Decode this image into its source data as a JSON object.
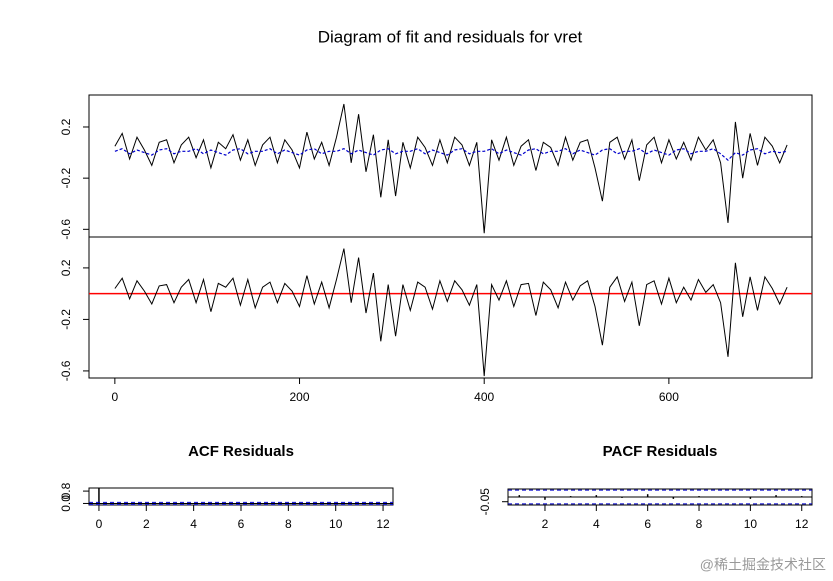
{
  "chart_data": [
    {
      "type": "line",
      "title": "Diagram of fit and residuals for vret",
      "x": [
        0,
        8,
        16,
        24,
        32,
        40,
        48,
        56,
        64,
        72,
        80,
        88,
        96,
        104,
        112,
        120,
        128,
        136,
        144,
        152,
        160,
        168,
        176,
        184,
        192,
        200,
        208,
        216,
        224,
        232,
        240,
        248,
        256,
        264,
        272,
        280,
        288,
        296,
        304,
        312,
        320,
        328,
        336,
        344,
        352,
        360,
        368,
        376,
        384,
        392,
        400,
        408,
        416,
        424,
        432,
        440,
        448,
        456,
        464,
        472,
        480,
        488,
        496,
        504,
        512,
        520,
        528,
        536,
        544,
        552,
        560,
        568,
        576,
        584,
        592,
        600,
        608,
        616,
        624,
        632,
        640,
        648,
        656,
        664,
        672,
        680,
        688,
        696,
        704,
        712,
        720,
        728
      ],
      "series": [
        {
          "color": "#000000",
          "values": [
            0.05,
            0.15,
            -0.05,
            0.12,
            0.02,
            -0.1,
            0.08,
            0.1,
            -0.08,
            0.06,
            0.12,
            -0.04,
            0.1,
            -0.12,
            0.08,
            0.03,
            0.14,
            -0.06,
            0.1,
            -0.1,
            0.06,
            0.12,
            -0.08,
            0.1,
            0.02,
            -0.12,
            0.16,
            -0.05,
            0.08,
            -0.1,
            0.12,
            0.38,
            -0.08,
            0.3,
            -0.15,
            0.14,
            -0.35,
            0.1,
            -0.34,
            0.08,
            -0.12,
            0.12,
            0.04,
            -0.1,
            0.1,
            -0.08,
            0.12,
            0.06,
            -0.1,
            0.08,
            -0.63,
            0.1,
            -0.06,
            0.12,
            -0.1,
            0.05,
            0.1,
            -0.14,
            0.08,
            0.04,
            -0.1,
            0.12,
            -0.06,
            0.08,
            0.1,
            -0.12,
            -0.38,
            0.08,
            0.12,
            -0.05,
            0.1,
            -0.22,
            0.06,
            0.12,
            -0.08,
            0.1,
            -0.05,
            0.08,
            -0.06,
            0.12,
            0.02,
            0.1,
            -0.08,
            -0.55,
            0.24,
            -0.2,
            0.15,
            -0.1,
            0.12,
            0.05,
            -0.08,
            0.06
          ]
        },
        {
          "color": "#0000cc",
          "dashed": true,
          "values": [
            0.01,
            0.03,
            -0.01,
            0.02,
            0.0,
            -0.02,
            0.02,
            0.03,
            -0.01,
            0.01,
            0.01,
            0.03,
            -0.01,
            0.02,
            0.0,
            -0.02,
            0.02,
            0.03,
            -0.01,
            0.01,
            0.01,
            0.03,
            -0.01,
            0.02,
            0.0,
            -0.02,
            0.02,
            0.03,
            -0.01,
            0.01,
            0.01,
            0.03,
            -0.01,
            0.02,
            0.0,
            -0.02,
            0.02,
            0.03,
            -0.01,
            0.01,
            0.01,
            0.03,
            -0.01,
            0.02,
            0.0,
            -0.02,
            0.02,
            0.03,
            -0.01,
            0.01,
            0.01,
            0.03,
            -0.01,
            0.02,
            0.0,
            -0.02,
            0.02,
            0.03,
            -0.01,
            0.01,
            0.01,
            0.03,
            -0.01,
            0.02,
            0.0,
            -0.02,
            0.02,
            0.03,
            -0.01,
            0.01,
            0.01,
            0.03,
            -0.01,
            0.02,
            0.0,
            -0.02,
            0.02,
            0.03,
            -0.01,
            0.01,
            0.01,
            0.03,
            -0.01,
            -0.06,
            0.0,
            -0.02,
            0.02,
            0.03,
            -0.01,
            0.01,
            0.0,
            0.01
          ]
        }
      ],
      "xlim": [
        -28,
        755
      ],
      "ylim": [
        -0.66,
        0.45
      ],
      "yticks": [
        0.2,
        -0.2,
        -0.6
      ]
    },
    {
      "type": "line",
      "x": [
        0,
        8,
        16,
        24,
        32,
        40,
        48,
        56,
        64,
        72,
        80,
        88,
        96,
        104,
        112,
        120,
        128,
        136,
        144,
        152,
        160,
        168,
        176,
        184,
        192,
        200,
        208,
        216,
        224,
        232,
        240,
        248,
        256,
        264,
        272,
        280,
        288,
        296,
        304,
        312,
        320,
        328,
        336,
        344,
        352,
        360,
        368,
        376,
        384,
        392,
        400,
        408,
        416,
        424,
        432,
        440,
        448,
        456,
        464,
        472,
        480,
        488,
        496,
        504,
        512,
        520,
        528,
        536,
        544,
        552,
        560,
        568,
        576,
        584,
        592,
        600,
        608,
        616,
        624,
        632,
        640,
        648,
        656,
        664,
        672,
        680,
        688,
        696,
        704,
        712,
        720,
        728
      ],
      "series": [
        {
          "color": "#000000",
          "values": [
            0.04,
            0.12,
            -0.04,
            0.1,
            0.02,
            -0.08,
            0.06,
            0.07,
            -0.07,
            0.05,
            0.11,
            -0.07,
            0.11,
            -0.14,
            0.08,
            0.05,
            0.12,
            -0.09,
            0.11,
            -0.11,
            0.05,
            0.09,
            -0.07,
            0.08,
            0.02,
            -0.1,
            0.14,
            -0.08,
            0.09,
            -0.11,
            0.11,
            0.35,
            -0.07,
            0.28,
            -0.15,
            0.16,
            -0.37,
            0.07,
            -0.33,
            0.07,
            -0.13,
            0.09,
            0.05,
            -0.12,
            0.1,
            -0.06,
            0.1,
            0.03,
            -0.09,
            0.07,
            -0.64,
            0.07,
            -0.05,
            0.1,
            -0.1,
            0.07,
            0.08,
            -0.17,
            0.09,
            0.03,
            -0.11,
            0.09,
            -0.05,
            0.06,
            0.1,
            -0.1,
            -0.4,
            0.05,
            0.13,
            -0.06,
            0.09,
            -0.25,
            0.07,
            0.1,
            -0.08,
            0.12,
            -0.07,
            0.05,
            -0.05,
            0.11,
            0.01,
            0.07,
            -0.07,
            -0.49,
            0.24,
            -0.18,
            0.13,
            -0.13,
            0.13,
            0.04,
            -0.08,
            0.05
          ]
        }
      ],
      "hline": 0,
      "hline_color": "#ff0000",
      "xlim": [
        -28,
        755
      ],
      "ylim": [
        -0.655,
        0.44
      ],
      "xticks": [
        0,
        200,
        400,
        600
      ],
      "yticks": [
        0.2,
        -0.2,
        -0.6
      ]
    },
    {
      "type": "bar",
      "title": "ACF Residuals",
      "x": [
        0,
        1,
        2,
        3,
        4,
        5,
        6,
        7,
        8,
        9,
        10,
        11,
        12
      ],
      "values": [
        1,
        0.02,
        -0.03,
        0.01,
        0.02,
        -0.01,
        0.03,
        -0.02,
        0.01,
        0.0,
        -0.02,
        0.02,
        0.01
      ],
      "ci": 0.073,
      "ci_color": "#0000cc",
      "xlim": [
        -0.42,
        12.42
      ],
      "ylim": [
        -0.1,
        1.0
      ],
      "xticks": [
        0,
        2,
        4,
        6,
        8,
        10,
        12
      ],
      "yticks": [
        {
          "value": 0,
          "label": "0.0"
        },
        0.8
      ]
    },
    {
      "type": "bar",
      "title": "PACF Residuals",
      "x": [
        1,
        2,
        3,
        4,
        5,
        6,
        7,
        8,
        9,
        10,
        11,
        12
      ],
      "values": [
        0.02,
        -0.03,
        0.01,
        0.02,
        -0.01,
        0.03,
        -0.02,
        0.01,
        0.0,
        -0.02,
        0.02,
        0.01
      ],
      "ci": 0.073,
      "ci_color": "#0000cc",
      "xlim": [
        0.56,
        12.4
      ],
      "ylim": [
        -0.085,
        0.085
      ],
      "xticks": [
        2,
        4,
        6,
        8,
        10,
        12
      ],
      "yticks": [
        -0.05
      ]
    }
  ],
  "watermark": "@稀土掘金技术社区"
}
